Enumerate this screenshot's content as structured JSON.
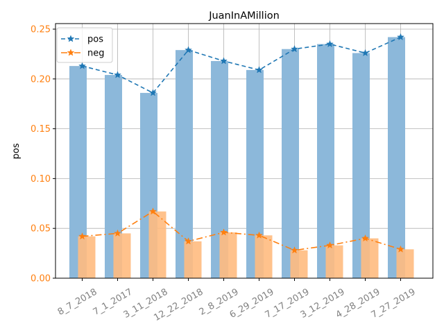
{
  "chart_data": {
    "type": "bar",
    "title": "JuanInAMillion",
    "xlabel": "",
    "ylabel": "pos",
    "ylim": [
      0,
      0.25
    ],
    "yticks": [
      "0.00",
      "0.05",
      "0.10",
      "0.15",
      "0.20",
      "0.25"
    ],
    "grid": true,
    "legend_position": "top-left",
    "categories": [
      "8_7_2018",
      "7_1_2017",
      "3_11_2018",
      "12_22_2018",
      "2_8_2019",
      "6_29_2019",
      "7_17_2019",
      "3_12_2019",
      "4_28_2019",
      "7_27_2019"
    ],
    "series": [
      {
        "name": "pos",
        "values": [
          0.213,
          0.204,
          0.186,
          0.229,
          0.218,
          0.209,
          0.23,
          0.235,
          0.226,
          0.242
        ],
        "bar_color": "#8cb8da",
        "line_color": "#1f77b4"
      },
      {
        "name": "neg",
        "values": [
          0.042,
          0.045,
          0.067,
          0.037,
          0.046,
          0.043,
          0.028,
          0.033,
          0.04,
          0.029
        ],
        "bar_color": "#ffbb80",
        "line_color": "#ff7f0e"
      }
    ],
    "ytick_color": "#ff7f0e",
    "xtick_color": "#808080"
  }
}
